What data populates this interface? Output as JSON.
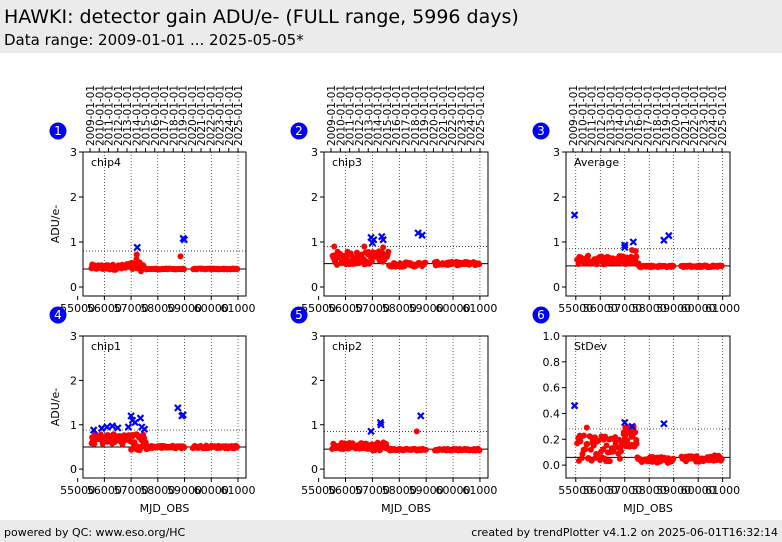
{
  "header": {
    "title": "HAWKI: detector gain ADU/e- (FULL range, 5996 days)",
    "subtitle": "Data range: 2009-01-01 ... 2025-05-05*"
  },
  "footer": {
    "left": "powered by QC: www.eso.org/HC",
    "right": "created by trendPlotter v4.1.2 on 2025-06-01T16:32:14"
  },
  "colors": {
    "good_points": "#ff0000",
    "outlier_points": "#0000ff",
    "badge": "#0000ff",
    "reference_line": "#000000"
  },
  "chart_data": [
    {
      "type": "scatter",
      "panel_number": "1",
      "label": "chip4",
      "xlabel": "",
      "ylabel": "ADU/e-",
      "xlim": [
        55200,
        61300
      ],
      "ylim": [
        -0.2,
        3
      ],
      "xticks": [
        55000,
        56000,
        57000,
        58000,
        59000,
        60000,
        61000
      ],
      "yticks": [
        0,
        1,
        2,
        3
      ],
      "date_ticks": [
        "2009-01-01",
        "2010-01-01",
        "2011-01-01",
        "2012-01-01",
        "2013-01-01",
        "2014-01-01",
        "2015-01-01",
        "2016-01-01",
        "2017-01-01",
        "2018-01-01",
        "2019-01-01",
        "2020-01-01",
        "2021-01-01",
        "2022-01-01",
        "2023-01-01",
        "2024-01-01",
        "2025-01-01"
      ],
      "ref_line": 0.4,
      "ref_dotted": [
        0.8
      ],
      "grid": "dotted",
      "series": [
        {
          "color": "red",
          "segments": [
            {
              "x": [
                55500,
                56800
              ],
              "y": 0.44,
              "spread": 0.06,
              "n": 45
            },
            {
              "x": [
                56800,
                57500
              ],
              "y": 0.45,
              "spread": 0.1,
              "n": 20
            },
            {
              "x": [
                57500,
                59000
              ],
              "y": 0.4,
              "spread": 0.01,
              "n": 40
            },
            {
              "x": [
                59300,
                61000
              ],
              "y": 0.4,
              "spread": 0.01,
              "n": 45
            }
          ],
          "points": [
            [
              57200,
              0.62
            ],
            [
              57210,
              0.72
            ],
            [
              58850,
              0.68
            ]
          ]
        },
        {
          "color": "blue",
          "points": [
            [
              57230,
              0.88
            ],
            [
              58950,
              1.08
            ],
            [
              58990,
              1.05
            ]
          ]
        }
      ]
    },
    {
      "type": "scatter",
      "panel_number": "2",
      "label": "chip3",
      "xlabel": "",
      "ylabel": "",
      "xlim": [
        55200,
        61300
      ],
      "ylim": [
        -0.2,
        3
      ],
      "xticks": [
        55000,
        56000,
        57000,
        58000,
        59000,
        60000,
        61000
      ],
      "yticks": [
        0,
        1,
        2,
        3
      ],
      "date_ticks": [
        "2009-01-01",
        "2010-01-01",
        "2011-01-01",
        "2012-01-01",
        "2013-01-01",
        "2014-01-01",
        "2015-01-01",
        "2016-01-01",
        "2017-01-01",
        "2018-01-01",
        "2019-01-01",
        "2020-01-01",
        "2021-01-01",
        "2022-01-01",
        "2023-01-01",
        "2024-01-01",
        "2025-01-01"
      ],
      "ref_line": 0.52,
      "ref_dotted": [
        0.9
      ],
      "grid": "dotted",
      "series": [
        {
          "color": "red",
          "segments": [
            {
              "x": [
                55500,
                56900
              ],
              "y": 0.64,
              "spread": 0.15,
              "n": 55
            },
            {
              "x": [
                56900,
                57600
              ],
              "y": 0.68,
              "spread": 0.12,
              "n": 30
            },
            {
              "x": [
                57600,
                59000
              ],
              "y": 0.5,
              "spread": 0.05,
              "n": 40
            },
            {
              "x": [
                59300,
                61000
              ],
              "y": 0.52,
              "spread": 0.04,
              "n": 45
            }
          ],
          "points": [
            [
              55580,
              0.9
            ],
            [
              56700,
              0.9
            ],
            [
              57400,
              0.88
            ]
          ]
        },
        {
          "color": "blue",
          "points": [
            [
              56950,
              1.1
            ],
            [
              57000,
              0.98
            ],
            [
              57050,
              1.05
            ],
            [
              57350,
              1.12
            ],
            [
              57400,
              1.05
            ],
            [
              58700,
              1.2
            ],
            [
              58850,
              1.15
            ]
          ]
        }
      ]
    },
    {
      "type": "scatter",
      "panel_number": "3",
      "label": "Average",
      "xlabel": "",
      "ylabel": "",
      "xlim": [
        54600,
        61300
      ],
      "ylim": [
        -0.2,
        3
      ],
      "xticks": [
        55000,
        56000,
        57000,
        58000,
        59000,
        60000,
        61000
      ],
      "yticks": [
        0,
        1,
        2,
        3
      ],
      "date_ticks": [
        "2009-01-01",
        "2010-01-01",
        "2011-01-01",
        "2012-01-01",
        "2013-01-01",
        "2014-01-01",
        "2015-01-01",
        "2016-01-01",
        "2017-01-01",
        "2018-01-01",
        "2019-01-01",
        "2020-01-01",
        "2021-01-01",
        "2022-01-01",
        "2023-01-01",
        "2024-01-01",
        "2025-01-01"
      ],
      "ref_line": 0.47,
      "ref_dotted": [
        0.85
      ],
      "grid": "dotted",
      "series": [
        {
          "color": "red",
          "segments": [
            {
              "x": [
                55050,
                57600
              ],
              "y": 0.6,
              "spread": 0.1,
              "n": 70
            },
            {
              "x": [
                57600,
                59000
              ],
              "y": 0.46,
              "spread": 0.02,
              "n": 35
            },
            {
              "x": [
                59300,
                61000
              ],
              "y": 0.46,
              "spread": 0.02,
              "n": 45
            }
          ],
          "points": [
            [
              57300,
              0.82
            ],
            [
              57450,
              0.8
            ]
          ]
        },
        {
          "color": "blue",
          "points": [
            [
              54950,
              1.6
            ],
            [
              57000,
              0.93
            ],
            [
              57000,
              0.88
            ],
            [
              57350,
              1.0
            ],
            [
              58600,
              1.04
            ],
            [
              58800,
              1.14
            ]
          ]
        }
      ]
    },
    {
      "type": "scatter",
      "panel_number": "4",
      "label": "chip1",
      "xlabel": "MJD_OBS",
      "ylabel": "ADU/e-",
      "xlim": [
        55200,
        61300
      ],
      "ylim": [
        -0.2,
        3
      ],
      "xticks": [
        55000,
        56000,
        57000,
        58000,
        59000,
        60000,
        61000
      ],
      "yticks": [
        0,
        1,
        2,
        3
      ],
      "ref_line": 0.5,
      "ref_dotted": [
        0.88
      ],
      "grid": "dotted",
      "series": [
        {
          "color": "red",
          "segments": [
            {
              "x": [
                55500,
                57000
              ],
              "y": 0.68,
              "spread": 0.12,
              "n": 50
            },
            {
              "x": [
                57000,
                57600
              ],
              "y": 0.6,
              "spread": 0.2,
              "n": 25
            },
            {
              "x": [
                57600,
                59000
              ],
              "y": 0.5,
              "spread": 0.03,
              "n": 40
            },
            {
              "x": [
                59300,
                61000
              ],
              "y": 0.5,
              "spread": 0.03,
              "n": 45
            }
          ],
          "points": []
        },
        {
          "color": "blue",
          "points": [
            [
              55600,
              0.88
            ],
            [
              55900,
              0.92
            ],
            [
              56100,
              0.95
            ],
            [
              56300,
              0.97
            ],
            [
              56500,
              0.93
            ],
            [
              56900,
              0.95
            ],
            [
              57000,
              1.2
            ],
            [
              57050,
              1.1
            ],
            [
              57150,
              1.05
            ],
            [
              57350,
              1.15
            ],
            [
              57400,
              0.95
            ],
            [
              57500,
              0.9
            ],
            [
              58750,
              1.38
            ],
            [
              58900,
              1.2
            ],
            [
              58950,
              1.22
            ]
          ]
        }
      ]
    },
    {
      "type": "scatter",
      "panel_number": "5",
      "label": "chip2",
      "xlabel": "MJD_OBS",
      "ylabel": "",
      "xlim": [
        55200,
        61300
      ],
      "ylim": [
        -0.2,
        3
      ],
      "xticks": [
        55000,
        56000,
        57000,
        58000,
        59000,
        60000,
        61000
      ],
      "yticks": [
        0,
        1,
        2,
        3
      ],
      "ref_line": 0.45,
      "ref_dotted": [
        0.85
      ],
      "grid": "dotted",
      "series": [
        {
          "color": "red",
          "segments": [
            {
              "x": [
                55500,
                56900
              ],
              "y": 0.52,
              "spread": 0.07,
              "n": 50
            },
            {
              "x": [
                56900,
                57600
              ],
              "y": 0.52,
              "spread": 0.1,
              "n": 25
            },
            {
              "x": [
                57600,
                59000
              ],
              "y": 0.44,
              "spread": 0.02,
              "n": 40
            },
            {
              "x": [
                59300,
                61000
              ],
              "y": 0.44,
              "spread": 0.02,
              "n": 45
            }
          ],
          "points": [
            [
              58650,
              0.85
            ]
          ]
        },
        {
          "color": "blue",
          "points": [
            [
              56950,
              0.85
            ],
            [
              57300,
              1.05
            ],
            [
              57320,
              1.0
            ],
            [
              58800,
              1.2
            ]
          ]
        }
      ]
    },
    {
      "type": "scatter",
      "panel_number": "6",
      "label": "StDev",
      "xlabel": "MJD_OBS",
      "ylabel": "",
      "xlim": [
        54600,
        61300
      ],
      "ylim": [
        -0.1,
        1.0
      ],
      "xticks": [
        55000,
        56000,
        57000,
        58000,
        59000,
        60000,
        61000
      ],
      "yticks": [
        0.0,
        0.2,
        0.4,
        0.6,
        0.8,
        1.0
      ],
      "ref_line": 0.06,
      "ref_dotted": [
        0.28
      ],
      "grid": "dotted",
      "series": [
        {
          "color": "red",
          "segments": [
            {
              "x": [
                55050,
                56900
              ],
              "y": 0.13,
              "spread": 0.1,
              "n": 60
            },
            {
              "x": [
                56900,
                57500
              ],
              "y": 0.22,
              "spread": 0.08,
              "n": 30
            },
            {
              "x": [
                57500,
                59000
              ],
              "y": 0.04,
              "spread": 0.025,
              "n": 40
            },
            {
              "x": [
                59300,
                61000
              ],
              "y": 0.05,
              "spread": 0.025,
              "n": 45
            }
          ],
          "points": [
            [
              55450,
              0.29
            ]
          ]
        },
        {
          "color": "blue",
          "points": [
            [
              54950,
              0.46
            ],
            [
              57000,
              0.33
            ],
            [
              57300,
              0.3
            ],
            [
              58600,
              0.32
            ]
          ]
        }
      ]
    }
  ]
}
